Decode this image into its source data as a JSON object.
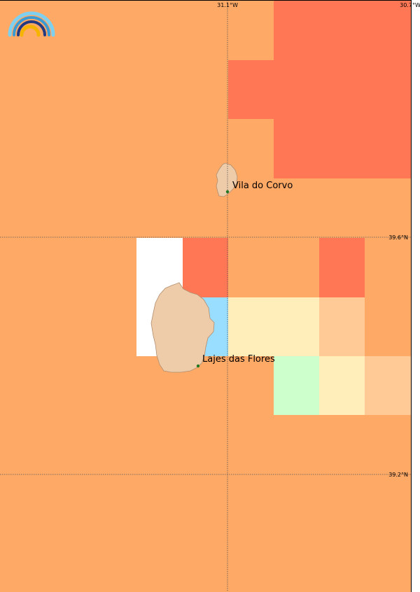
{
  "map": {
    "longitude_labels": [
      "31.1°W",
      "30.7°W"
    ],
    "latitude_labels": [
      "39.6°N",
      "39.2°N"
    ],
    "places": [
      {
        "name": "Vila do Corvo"
      },
      {
        "name": "Lajes das Flores"
      }
    ],
    "logo_icon": "rainbow-logo-icon",
    "colors": {
      "ocean_base": "#FFA966",
      "high": "#FF7755",
      "light_orange": "#FFCA95",
      "pale_yellow": "#FFEDBA",
      "light_green": "#CCFFCC",
      "light_blue": "#99DDFF",
      "no_data": "#FFFFFF",
      "land": "#EECBA9",
      "town_marker": "#227722"
    }
  }
}
